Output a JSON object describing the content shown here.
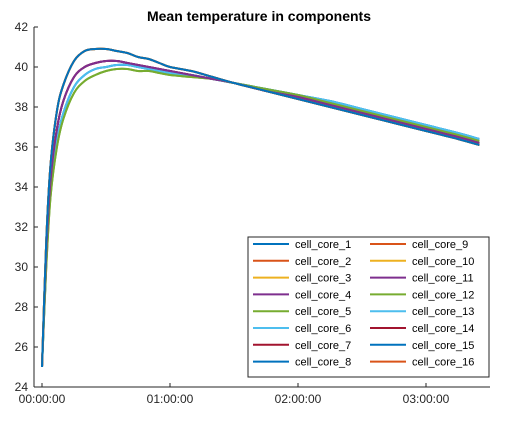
{
  "chart_data": {
    "type": "line",
    "title": "Mean temperature in components",
    "xlabel": "",
    "ylabel": "",
    "x_ticks": [
      "00:00:00",
      "01:00:00",
      "02:00:00",
      "03:00:00"
    ],
    "y_ticks": [
      24,
      26,
      28,
      30,
      32,
      34,
      36,
      38,
      40,
      42
    ],
    "xlim": [
      "00:00:00",
      "03:35:00"
    ],
    "ylim": [
      24,
      42
    ],
    "grid": false,
    "legend_position": "bottom-right",
    "legend_columns": 2,
    "x": [
      "00:00:00",
      "00:02:00",
      "00:04:00",
      "00:07:00",
      "00:10:00",
      "00:15:00",
      "00:20:00",
      "00:25:00",
      "00:30:00",
      "00:35:00",
      "00:40:00",
      "00:45:00",
      "00:50:00",
      "00:55:00",
      "01:00:00",
      "01:10:00",
      "01:20:00",
      "01:30:00",
      "01:45:00",
      "02:00:00",
      "02:15:00",
      "02:30:00",
      "02:45:00",
      "03:00:00",
      "03:15:00",
      "03:25:00"
    ],
    "series": [
      {
        "name": "cell_core_1",
        "color": "#0072BD",
        "values": [
          25.0,
          31.3,
          35.1,
          37.8,
          39.1,
          40.3,
          40.8,
          40.9,
          40.9,
          40.8,
          40.7,
          40.5,
          40.4,
          40.2,
          40.0,
          39.8,
          39.5,
          39.2,
          38.8,
          38.4,
          38.0,
          37.6,
          37.2,
          36.8,
          36.4,
          36.1
        ]
      },
      {
        "name": "cell_core_2",
        "color": "#D95319",
        "values": [
          25.0,
          31.3,
          35.1,
          37.8,
          39.1,
          40.3,
          40.8,
          40.9,
          40.9,
          40.8,
          40.7,
          40.5,
          40.4,
          40.2,
          40.0,
          39.8,
          39.5,
          39.2,
          38.8,
          38.4,
          38.0,
          37.6,
          37.2,
          36.8,
          36.4,
          36.1
        ]
      },
      {
        "name": "cell_core_3",
        "color": "#EDB120",
        "values": [
          25.0,
          31.3,
          35.1,
          37.8,
          39.1,
          40.3,
          40.8,
          40.9,
          40.9,
          40.8,
          40.7,
          40.5,
          40.4,
          40.2,
          40.0,
          39.8,
          39.5,
          39.2,
          38.8,
          38.4,
          38.0,
          37.6,
          37.2,
          36.8,
          36.4,
          36.1
        ]
      },
      {
        "name": "cell_core_4",
        "color": "#7E2F8E",
        "values": [
          25.0,
          30.7,
          34.3,
          36.9,
          38.3,
          39.5,
          40.0,
          40.2,
          40.3,
          40.3,
          40.2,
          40.1,
          40.0,
          39.9,
          39.8,
          39.6,
          39.4,
          39.2,
          38.8,
          38.5,
          38.1,
          37.7,
          37.3,
          36.9,
          36.5,
          36.2
        ]
      },
      {
        "name": "cell_core_5",
        "color": "#77AC30",
        "values": [
          25.0,
          30.0,
          33.5,
          36.0,
          37.4,
          38.7,
          39.3,
          39.6,
          39.8,
          39.9,
          39.9,
          39.8,
          39.8,
          39.7,
          39.6,
          39.5,
          39.4,
          39.2,
          38.9,
          38.6,
          38.2,
          37.8,
          37.4,
          37.0,
          36.6,
          36.3
        ]
      },
      {
        "name": "cell_core_6",
        "color": "#4DBEEE",
        "values": [
          25.0,
          30.2,
          33.8,
          36.3,
          37.7,
          39.0,
          39.6,
          39.9,
          40.0,
          40.1,
          40.1,
          40.0,
          39.9,
          39.8,
          39.7,
          39.6,
          39.4,
          39.2,
          38.9,
          38.6,
          38.3,
          37.9,
          37.5,
          37.1,
          36.7,
          36.4
        ]
      },
      {
        "name": "cell_core_7",
        "color": "#A2142F",
        "values": [
          25.0,
          30.7,
          34.3,
          36.9,
          38.3,
          39.5,
          40.0,
          40.2,
          40.3,
          40.3,
          40.2,
          40.1,
          40.0,
          39.9,
          39.8,
          39.6,
          39.4,
          39.2,
          38.8,
          38.5,
          38.1,
          37.7,
          37.3,
          36.9,
          36.5,
          36.2
        ]
      },
      {
        "name": "cell_core_8",
        "color": "#0072BD",
        "values": [
          25.0,
          30.2,
          33.8,
          36.3,
          37.7,
          39.0,
          39.6,
          39.9,
          40.0,
          40.1,
          40.1,
          40.0,
          39.9,
          39.8,
          39.7,
          39.6,
          39.4,
          39.2,
          38.9,
          38.6,
          38.3,
          37.9,
          37.5,
          37.1,
          36.7,
          36.4
        ]
      },
      {
        "name": "cell_core_9",
        "color": "#D95319",
        "values": [
          25.0,
          31.3,
          35.1,
          37.8,
          39.1,
          40.3,
          40.8,
          40.9,
          40.9,
          40.8,
          40.7,
          40.5,
          40.4,
          40.2,
          40.0,
          39.8,
          39.5,
          39.2,
          38.8,
          38.4,
          38.0,
          37.6,
          37.2,
          36.8,
          36.4,
          36.1
        ]
      },
      {
        "name": "cell_core_10",
        "color": "#EDB120",
        "values": [
          25.0,
          31.3,
          35.1,
          37.8,
          39.1,
          40.3,
          40.8,
          40.9,
          40.9,
          40.8,
          40.7,
          40.5,
          40.4,
          40.2,
          40.0,
          39.8,
          39.5,
          39.2,
          38.8,
          38.4,
          38.0,
          37.6,
          37.2,
          36.8,
          36.4,
          36.1
        ]
      },
      {
        "name": "cell_core_11",
        "color": "#7E2F8E",
        "values": [
          25.0,
          30.7,
          34.3,
          36.9,
          38.3,
          39.5,
          40.0,
          40.2,
          40.3,
          40.3,
          40.2,
          40.1,
          40.0,
          39.9,
          39.8,
          39.6,
          39.4,
          39.2,
          38.8,
          38.5,
          38.1,
          37.7,
          37.3,
          36.9,
          36.5,
          36.2
        ]
      },
      {
        "name": "cell_core_12",
        "color": "#77AC30",
        "values": [
          25.0,
          30.0,
          33.5,
          36.0,
          37.4,
          38.7,
          39.3,
          39.6,
          39.8,
          39.9,
          39.9,
          39.8,
          39.8,
          39.7,
          39.6,
          39.5,
          39.4,
          39.2,
          38.9,
          38.6,
          38.2,
          37.8,
          37.4,
          37.0,
          36.6,
          36.3
        ]
      },
      {
        "name": "cell_core_13",
        "color": "#4DBEEE",
        "values": [
          25.0,
          30.2,
          33.8,
          36.3,
          37.7,
          39.0,
          39.6,
          39.9,
          40.0,
          40.1,
          40.1,
          40.0,
          39.9,
          39.8,
          39.7,
          39.6,
          39.4,
          39.2,
          38.9,
          38.6,
          38.3,
          37.9,
          37.5,
          37.1,
          36.7,
          36.4
        ]
      },
      {
        "name": "cell_core_14",
        "color": "#A2142F",
        "values": [
          25.0,
          30.7,
          34.3,
          36.9,
          38.3,
          39.5,
          40.0,
          40.2,
          40.3,
          40.3,
          40.2,
          40.1,
          40.0,
          39.9,
          39.8,
          39.6,
          39.4,
          39.2,
          38.8,
          38.5,
          38.1,
          37.7,
          37.3,
          36.9,
          36.5,
          36.2
        ]
      },
      {
        "name": "cell_core_15",
        "color": "#0072BD",
        "values": [
          25.0,
          31.3,
          35.1,
          37.8,
          39.1,
          40.3,
          40.8,
          40.9,
          40.9,
          40.8,
          40.7,
          40.5,
          40.4,
          40.2,
          40.0,
          39.8,
          39.5,
          39.2,
          38.8,
          38.4,
          38.0,
          37.6,
          37.2,
          36.8,
          36.4,
          36.1
        ]
      },
      {
        "name": "cell_core_16",
        "color": "#D95319",
        "values": [
          25.0,
          31.3,
          35.1,
          37.8,
          39.1,
          40.3,
          40.8,
          40.9,
          40.9,
          40.8,
          40.7,
          40.5,
          40.4,
          40.2,
          40.0,
          39.8,
          39.5,
          39.2,
          38.8,
          38.4,
          38.0,
          37.6,
          37.2,
          36.8,
          36.4,
          36.1
        ]
      }
    ]
  }
}
